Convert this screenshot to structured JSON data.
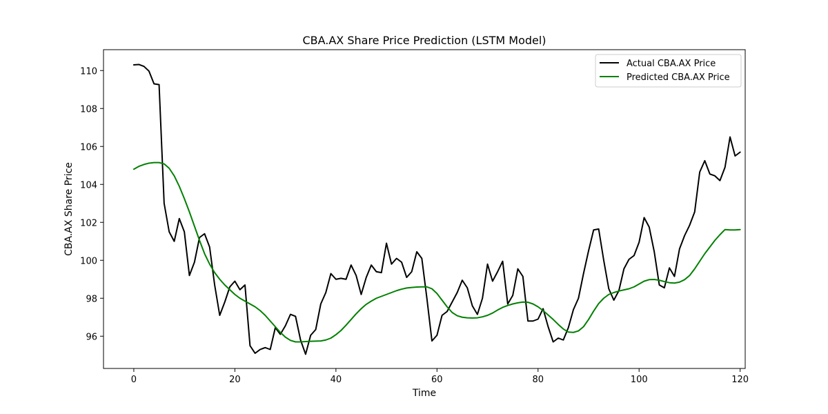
{
  "chart_data": {
    "type": "line",
    "title": "CBA.AX Share Price Prediction (LSTM Model)",
    "xlabel": "Time",
    "ylabel": "CBA.AX Share Price",
    "xlim": [
      -6,
      121
    ],
    "ylim": [
      94.3,
      111.1
    ],
    "xticks": [
      0,
      20,
      40,
      60,
      80,
      100,
      120
    ],
    "yticks": [
      96,
      98,
      100,
      102,
      104,
      106,
      108,
      110
    ],
    "grid": false,
    "legend_position": "top-right",
    "series": [
      {
        "name": "Actual CBA.AX Price",
        "color": "#000000",
        "x": [
          0,
          1,
          2,
          3,
          4,
          5,
          6,
          7,
          8,
          9,
          10,
          11,
          12,
          13,
          14,
          15,
          16,
          17,
          18,
          19,
          20,
          21,
          22,
          23,
          24,
          25,
          26,
          27,
          28,
          29,
          30,
          31,
          32,
          33,
          34,
          35,
          36,
          37,
          38,
          39,
          40,
          41,
          42,
          43,
          44,
          45,
          46,
          47,
          48,
          49,
          50,
          51,
          52,
          53,
          54,
          55,
          56,
          57,
          58,
          59,
          60,
          61,
          62,
          63,
          64,
          65,
          66,
          67,
          68,
          69,
          70,
          71,
          72,
          73,
          74,
          75,
          76,
          77,
          78,
          79,
          80,
          81,
          82,
          83,
          84,
          85,
          86,
          87,
          88,
          89,
          90,
          91,
          92,
          93,
          94,
          95,
          96,
          97,
          98,
          99,
          100,
          101,
          102,
          103,
          104,
          105,
          106,
          107,
          108,
          109,
          110,
          111,
          112,
          113,
          114,
          115,
          116,
          117,
          118,
          119,
          120
        ],
        "values": [
          110.3,
          110.32,
          110.22,
          109.97,
          109.3,
          109.26,
          103.0,
          101.5,
          101.0,
          102.2,
          101.5,
          99.2,
          99.9,
          101.2,
          101.4,
          100.7,
          98.7,
          97.1,
          97.8,
          98.6,
          98.9,
          98.45,
          98.7,
          95.5,
          95.1,
          95.3,
          95.4,
          95.3,
          96.45,
          96.1,
          96.55,
          97.15,
          97.05,
          95.8,
          95.05,
          96.05,
          96.35,
          97.7,
          98.3,
          99.3,
          99.0,
          99.05,
          99.0,
          99.75,
          99.2,
          98.2,
          99.1,
          99.75,
          99.4,
          99.35,
          100.9,
          99.8,
          100.1,
          99.9,
          99.1,
          99.4,
          100.45,
          100.1,
          98.0,
          95.75,
          96.05,
          97.1,
          97.3,
          97.8,
          98.3,
          98.95,
          98.55,
          97.6,
          97.15,
          98.0,
          99.8,
          98.9,
          99.4,
          99.95,
          97.7,
          98.15,
          99.55,
          99.15,
          96.8,
          96.8,
          96.9,
          97.45,
          96.5,
          95.7,
          95.9,
          95.8,
          96.45,
          97.4,
          98.0,
          99.3,
          100.5,
          101.6,
          101.65,
          100.0,
          98.5,
          97.9,
          98.4,
          99.55,
          100.05,
          100.25,
          100.95,
          102.25,
          101.75,
          100.45,
          98.7,
          98.55,
          99.6,
          99.15,
          100.6,
          101.3,
          101.85,
          102.55,
          104.65,
          105.25,
          104.55,
          104.45,
          104.2,
          104.9,
          106.5,
          105.5,
          105.7
        ]
      },
      {
        "name": "Predicted CBA.AX Price",
        "color": "#008000",
        "x": [
          0,
          1,
          2,
          3,
          4,
          5,
          6,
          7,
          8,
          9,
          10,
          11,
          12,
          13,
          14,
          15,
          16,
          17,
          18,
          19,
          20,
          21,
          22,
          23,
          24,
          25,
          26,
          27,
          28,
          29,
          30,
          31,
          32,
          33,
          34,
          35,
          36,
          37,
          38,
          39,
          40,
          41,
          42,
          43,
          44,
          45,
          46,
          47,
          48,
          49,
          50,
          51,
          52,
          53,
          54,
          55,
          56,
          57,
          58,
          59,
          60,
          61,
          62,
          63,
          64,
          65,
          66,
          67,
          68,
          69,
          70,
          71,
          72,
          73,
          74,
          75,
          76,
          77,
          78,
          79,
          80,
          81,
          82,
          83,
          84,
          85,
          86,
          87,
          88,
          89,
          90,
          91,
          92,
          93,
          94,
          95,
          96,
          97,
          98,
          99,
          100,
          101,
          102,
          103,
          104,
          105,
          106,
          107,
          108,
          109,
          110,
          111,
          112,
          113,
          114,
          115,
          116,
          117,
          118,
          119,
          120
        ],
        "values": [
          104.8,
          104.95,
          105.05,
          105.12,
          105.15,
          105.15,
          105.08,
          104.85,
          104.45,
          103.9,
          103.25,
          102.55,
          101.8,
          101.05,
          100.35,
          99.8,
          99.35,
          99.0,
          98.7,
          98.45,
          98.2,
          98.0,
          97.85,
          97.7,
          97.55,
          97.35,
          97.1,
          96.8,
          96.5,
          96.2,
          95.95,
          95.78,
          95.7,
          95.7,
          95.72,
          95.73,
          95.74,
          95.75,
          95.8,
          95.9,
          96.08,
          96.3,
          96.58,
          96.88,
          97.18,
          97.45,
          97.68,
          97.85,
          98.0,
          98.1,
          98.2,
          98.3,
          98.4,
          98.48,
          98.54,
          98.57,
          98.59,
          98.6,
          98.6,
          98.5,
          98.25,
          97.9,
          97.55,
          97.25,
          97.08,
          97.0,
          96.97,
          96.96,
          96.97,
          97.02,
          97.1,
          97.22,
          97.38,
          97.52,
          97.62,
          97.7,
          97.76,
          97.8,
          97.79,
          97.7,
          97.55,
          97.35,
          97.12,
          96.88,
          96.62,
          96.38,
          96.22,
          96.2,
          96.28,
          96.5,
          96.88,
          97.32,
          97.72,
          98.0,
          98.2,
          98.3,
          98.38,
          98.44,
          98.5,
          98.6,
          98.75,
          98.9,
          98.98,
          98.99,
          98.95,
          98.88,
          98.82,
          98.8,
          98.85,
          98.98,
          99.2,
          99.55,
          99.95,
          100.35,
          100.7,
          101.05,
          101.35,
          101.62,
          101.6,
          101.6,
          101.62
        ]
      }
    ]
  }
}
